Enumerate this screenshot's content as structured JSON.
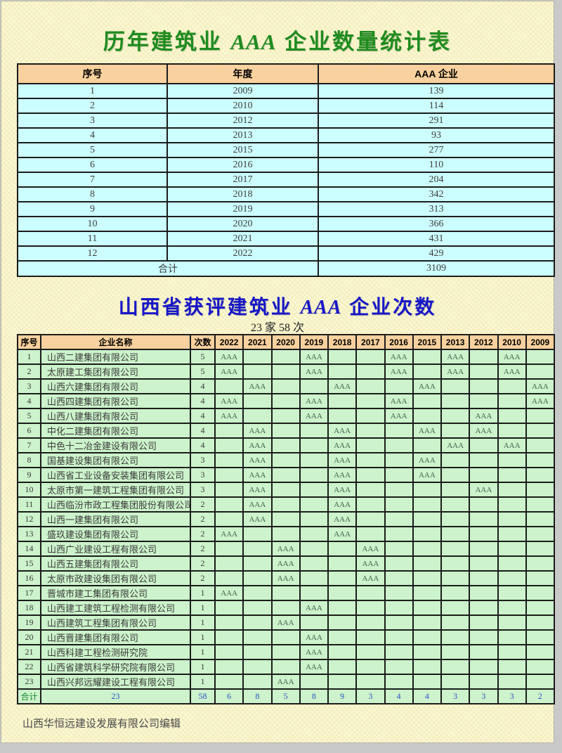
{
  "title1": {
    "prefix": "历年建筑业",
    "aaa": "AAA",
    "suffix": "企业数量统计表",
    "color": "#1e8c1e"
  },
  "title2": {
    "prefix": "山西省获评建筑业",
    "aaa": "AAA",
    "suffix": "企业次数",
    "color": "#1717c9"
  },
  "subtitle2": "23 家 58 次",
  "footer": "山西华恒远建设发展有限公司编辑",
  "colors": {
    "page_background": "#fbf7d0",
    "header_cell": "#f9d19e",
    "table1_cell": "#ccfeff",
    "table2_cell": "#ccf3cb",
    "totals_number": "#2b50cc"
  },
  "table1": {
    "headers": [
      "序号",
      "年度",
      "AAA 企业"
    ],
    "rows": [
      [
        "1",
        "2009",
        "139"
      ],
      [
        "2",
        "2010",
        "114"
      ],
      [
        "3",
        "2012",
        "291"
      ],
      [
        "4",
        "2013",
        "93"
      ],
      [
        "5",
        "2015",
        "277"
      ],
      [
        "6",
        "2016",
        "110"
      ],
      [
        "7",
        "2017",
        "204"
      ],
      [
        "8",
        "2018",
        "342"
      ],
      [
        "9",
        "2019",
        "313"
      ],
      [
        "10",
        "2020",
        "366"
      ],
      [
        "11",
        "2021",
        "431"
      ],
      [
        "12",
        "2022",
        "429"
      ]
    ],
    "total_label": "合计",
    "total_value": "3109"
  },
  "table2": {
    "fixed_headers": [
      "序号",
      "企业名称",
      "次数"
    ],
    "years": [
      "2022",
      "2021",
      "2020",
      "2019",
      "2018",
      "2017",
      "2016",
      "2015",
      "2013",
      "2012",
      "2010",
      "2009"
    ],
    "mark_text": "AAA",
    "rows": [
      {
        "no": "1",
        "name": "山西二建集团有限公司",
        "count": "5",
        "marks": [
          "2022",
          "2019",
          "2016",
          "2013",
          "2010"
        ]
      },
      {
        "no": "2",
        "name": "太原建工集团有限公司",
        "count": "5",
        "marks": [
          "2022",
          "2019",
          "2016",
          "2013",
          "2010"
        ]
      },
      {
        "no": "3",
        "name": "山西六建集团有限公司",
        "count": "4",
        "marks": [
          "2021",
          "2018",
          "2015",
          "2009"
        ]
      },
      {
        "no": "4",
        "name": "山西四建集团有限公司",
        "count": "4",
        "marks": [
          "2022",
          "2019",
          "2016",
          "2009"
        ]
      },
      {
        "no": "5",
        "name": "山西八建集团有限公司",
        "count": "4",
        "marks": [
          "2022",
          "2019",
          "2016",
          "2012"
        ]
      },
      {
        "no": "6",
        "name": "中化二建集团有限公司",
        "count": "4",
        "marks": [
          "2021",
          "2018",
          "2015",
          "2012"
        ]
      },
      {
        "no": "7",
        "name": "中色十二冶金建设有限公司",
        "count": "4",
        "marks": [
          "2021",
          "2018",
          "2013",
          "2010"
        ]
      },
      {
        "no": "8",
        "name": "国基建设集团有限公司",
        "count": "3",
        "marks": [
          "2021",
          "2018",
          "2015"
        ]
      },
      {
        "no": "9",
        "name": "山西省工业设备安装集团有限公司",
        "count": "3",
        "marks": [
          "2021",
          "2018",
          "2015"
        ]
      },
      {
        "no": "10",
        "name": "太原市第一建筑工程集团有限公司",
        "count": "3",
        "marks": [
          "2021",
          "2018",
          "2012"
        ]
      },
      {
        "no": "11",
        "name": "山西临汾市政工程集团股份有限公司",
        "count": "2",
        "marks": [
          "2021",
          "2018"
        ]
      },
      {
        "no": "12",
        "name": "山西一建集团有限公司",
        "count": "2",
        "marks": [
          "2021",
          "2018"
        ]
      },
      {
        "no": "13",
        "name": "盛玖建设集团有限公司",
        "count": "2",
        "marks": [
          "2022",
          "2018"
        ]
      },
      {
        "no": "14",
        "name": "山西广业建设工程有限公司",
        "count": "2",
        "marks": [
          "2020",
          "2017"
        ]
      },
      {
        "no": "15",
        "name": "山西五建集团有限公司",
        "count": "2",
        "marks": [
          "2020",
          "2017"
        ]
      },
      {
        "no": "16",
        "name": "太原市政建设集团有限公司",
        "count": "2",
        "marks": [
          "2020",
          "2017"
        ]
      },
      {
        "no": "17",
        "name": "晋城市建工集团有限公司",
        "count": "1",
        "marks": [
          "2022"
        ]
      },
      {
        "no": "18",
        "name": "山西建工建筑工程检测有限公司",
        "count": "1",
        "marks": [
          "2019"
        ]
      },
      {
        "no": "19",
        "name": "山西建筑工程集团有限公司",
        "count": "1",
        "marks": [
          "2020"
        ]
      },
      {
        "no": "20",
        "name": "山西晋建集团有限公司",
        "count": "1",
        "marks": [
          "2019"
        ]
      },
      {
        "no": "21",
        "name": "山西科建工程检测研究院",
        "count": "1",
        "marks": [
          "2019"
        ]
      },
      {
        "no": "22",
        "name": "山西省建筑科学研究院有限公司",
        "count": "1",
        "marks": [
          "2019"
        ]
      },
      {
        "no": "23",
        "name": "山西兴邦远耀建设工程有限公司",
        "count": "1",
        "marks": [
          "2020"
        ]
      }
    ],
    "totals": {
      "label": "合计",
      "company_total": "23",
      "count_total": "58",
      "year_totals": [
        "6",
        "8",
        "5",
        "8",
        "9",
        "3",
        "4",
        "4",
        "3",
        "3",
        "3",
        "2"
      ]
    }
  }
}
